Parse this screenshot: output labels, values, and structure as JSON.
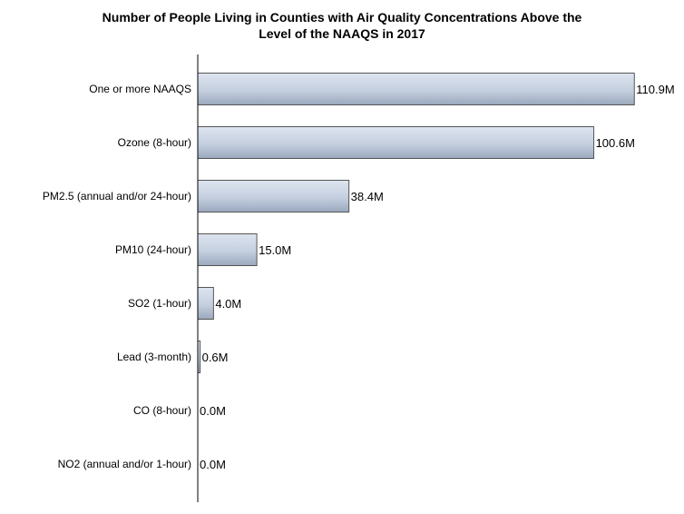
{
  "chart_data": {
    "type": "bar",
    "orientation": "horizontal",
    "title_lines": [
      "Number of People Living in Counties with Air Quality Concentrations Above the",
      "Level of the NAAQS in 2017"
    ],
    "categories": [
      "One or more NAAQS",
      "Ozone (8-hour)",
      "PM2.5 (annual and/or 24-hour)",
      "PM10 (24-hour)",
      "SO2 (1-hour)",
      "Lead (3-month)",
      "CO (8-hour)",
      "NO2 (annual and/or 1-hour)"
    ],
    "values": [
      110.9,
      100.6,
      38.4,
      15.0,
      4.0,
      0.6,
      0.0,
      0.0
    ],
    "value_labels": [
      "110.9M",
      "100.6M",
      "38.4M",
      "15.0M",
      "4.0M",
      "0.6M",
      "0.0M",
      "0.0M"
    ],
    "value_unit": "M",
    "xlim": [
      0,
      111.3
    ],
    "grid": false,
    "legend": "none",
    "colors": {
      "bar_light": "#dde4ef",
      "bar_dark": "#9aa8be",
      "bar_stroke": "#555555",
      "axis": "#000000"
    }
  }
}
